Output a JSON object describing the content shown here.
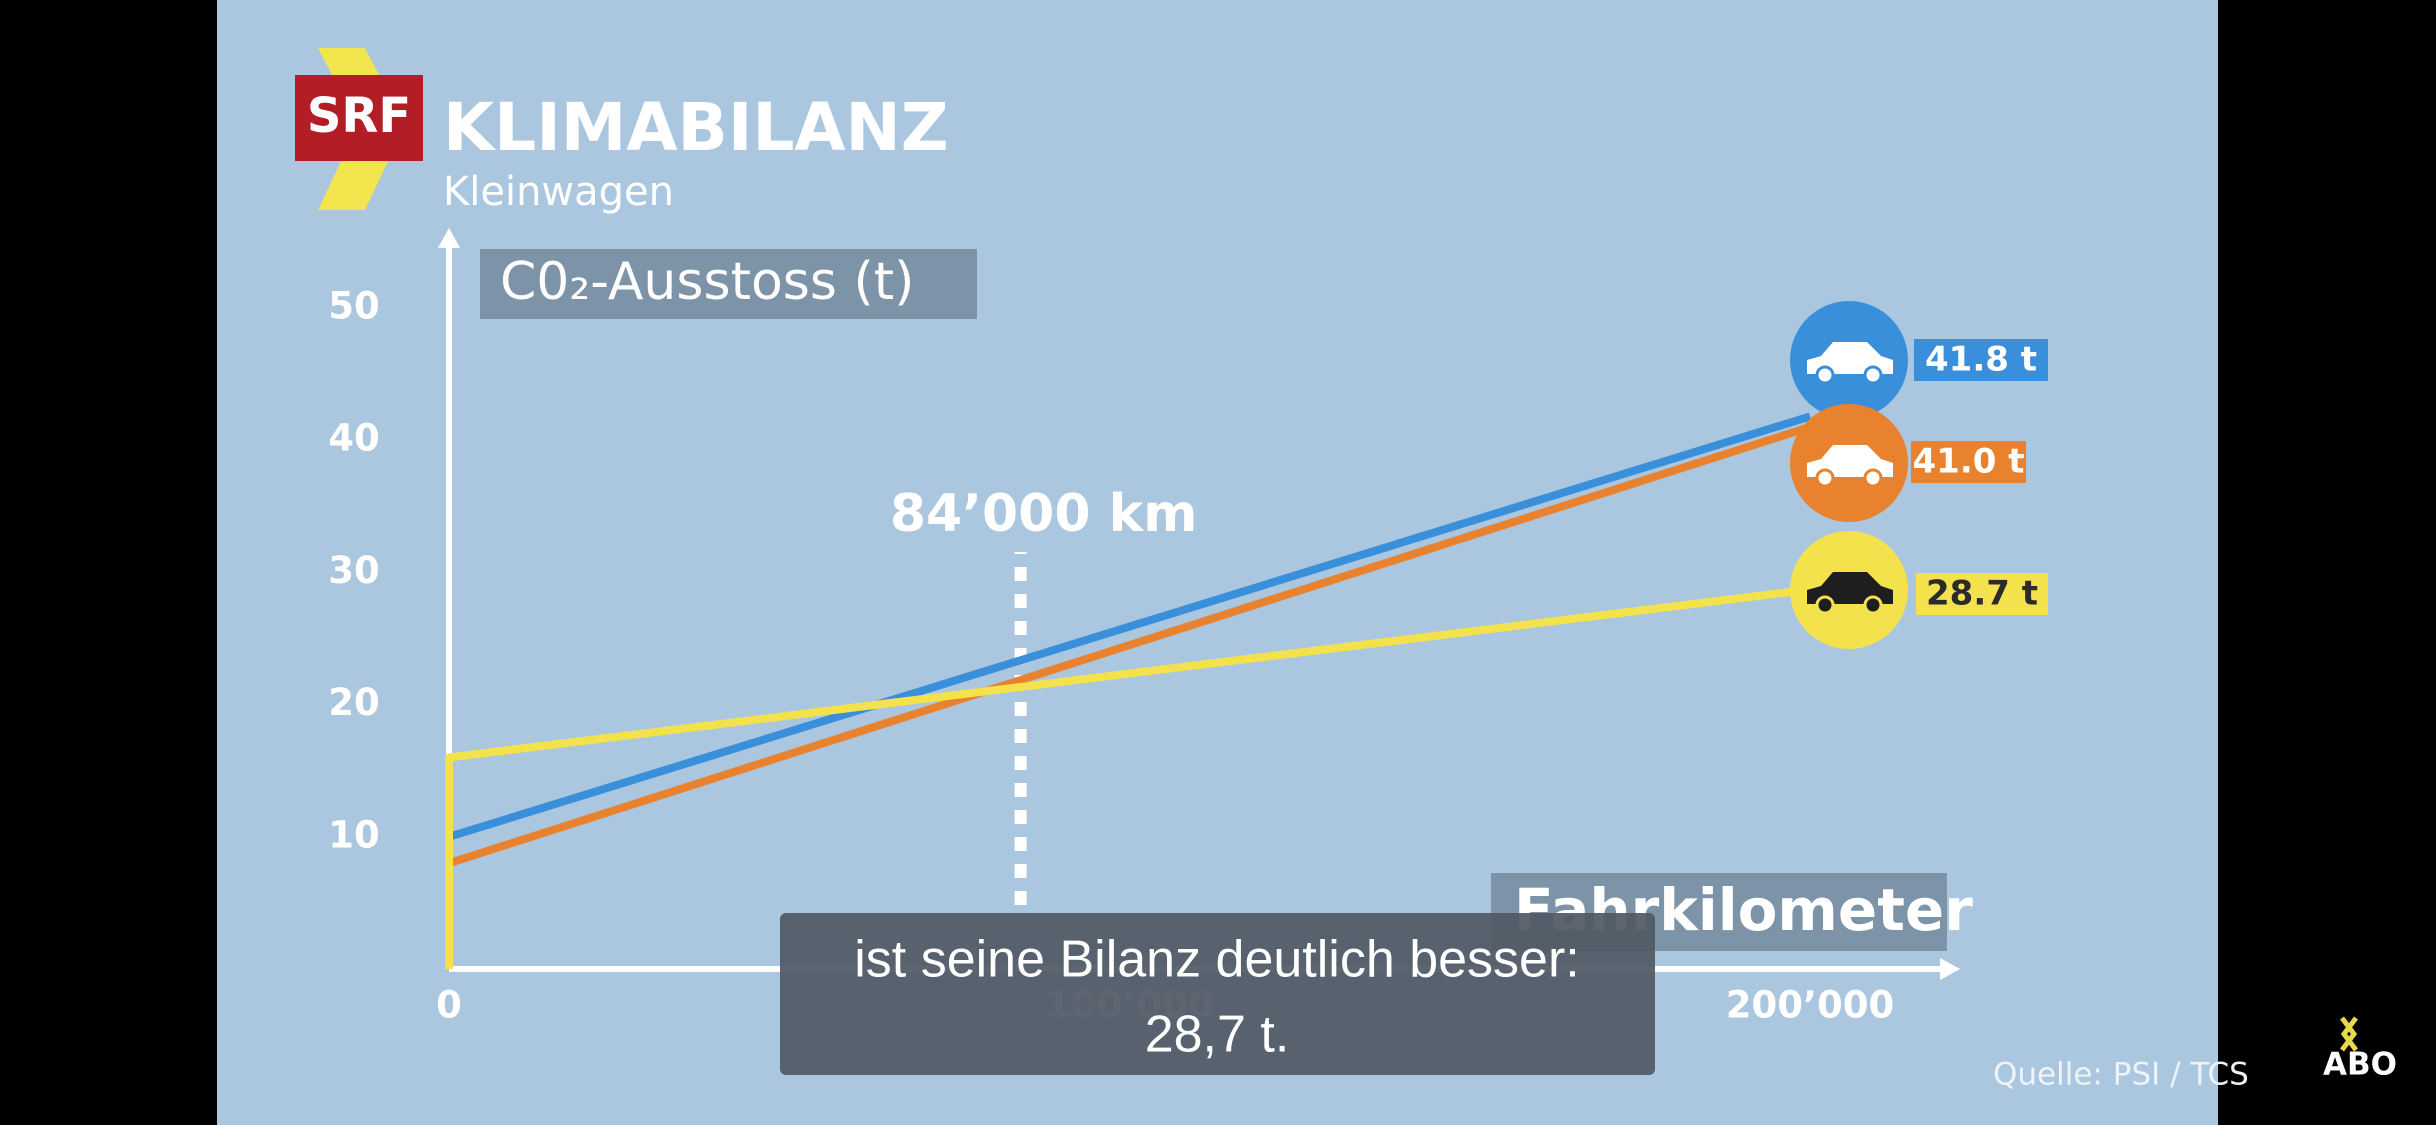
{
  "chart_data": {
    "type": "line",
    "logo": "SRF",
    "title": "KLIMABILANZ",
    "subtitle": "Kleinwagen",
    "y_label": "C0₂-Ausstoss (t)",
    "x_label": "Fahrkilometer",
    "annotation": {
      "text": "84’000 km",
      "x": 84000
    },
    "source": "Quelle: PSI / TCS",
    "x": [
      0,
      0,
      200000
    ],
    "series": [
      {
        "color": "#3a8fdb",
        "values": [
          0,
          10,
          41.8
        ],
        "value_labels": [
          null,
          null,
          "41.8 t"
        ]
      },
      {
        "color": "#e8822e",
        "values": [
          0,
          8,
          41.0
        ],
        "value_labels": [
          null,
          null,
          "41.0 t"
        ]
      },
      {
        "color": "#f4e24c",
        "values": [
          0,
          16,
          28.7
        ],
        "value_labels": [
          null,
          null,
          "28.7 t"
        ]
      }
    ],
    "xlim": [
      0,
      220000
    ],
    "ylim": [
      0,
      55
    ],
    "xticks": [
      0,
      {
        "value": 100000,
        "label": "100’000"
      },
      {
        "value": 200000,
        "label": "200’000"
      }
    ],
    "yticks": [
      10,
      20,
      30,
      40,
      50
    ]
  },
  "captions": [
    "ist seine Bilanz deutlich besser:",
    "28,7 t."
  ],
  "player": {
    "badge": "ABO"
  }
}
